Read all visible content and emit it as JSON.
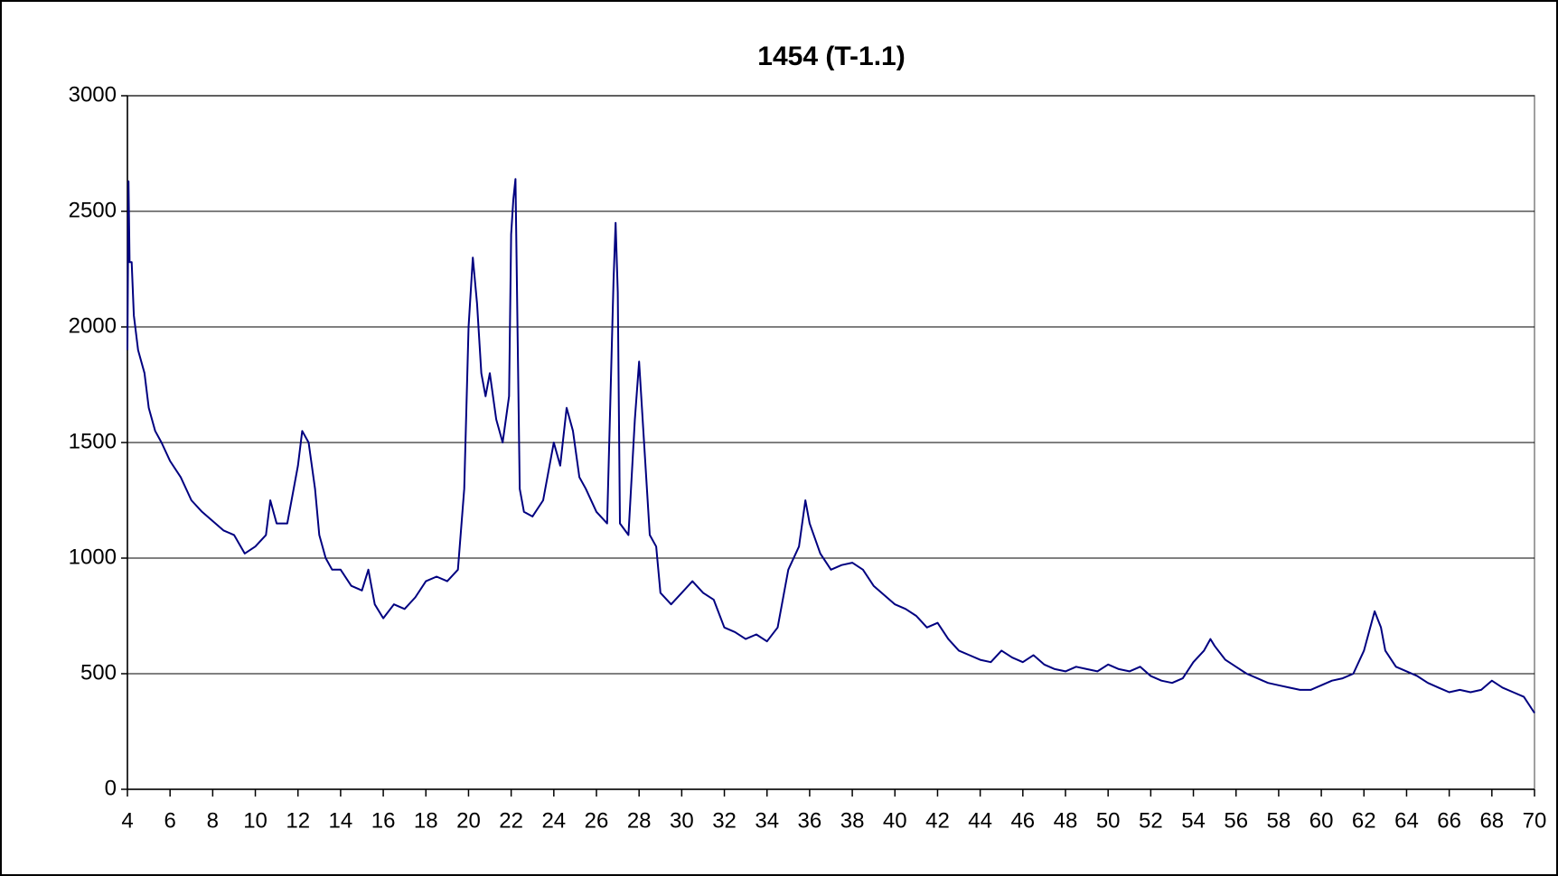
{
  "chart_data": {
    "type": "line",
    "title": "1454 (T-1.1)",
    "x": [
      4.0,
      4.05,
      4.1,
      4.2,
      4.3,
      4.5,
      4.8,
      5.0,
      5.3,
      5.6,
      6.0,
      6.5,
      7.0,
      7.5,
      8.0,
      8.5,
      9.0,
      9.5,
      10.0,
      10.5,
      10.7,
      11.0,
      11.5,
      12.0,
      12.2,
      12.5,
      12.8,
      13.0,
      13.3,
      13.6,
      14.0,
      14.5,
      15.0,
      15.3,
      15.6,
      16.0,
      16.5,
      17.0,
      17.5,
      18.0,
      18.5,
      19.0,
      19.5,
      19.8,
      20.0,
      20.2,
      20.4,
      20.6,
      20.8,
      21.0,
      21.3,
      21.6,
      21.9,
      22.0,
      22.1,
      22.2,
      22.4,
      22.6,
      23.0,
      23.5,
      24.0,
      24.3,
      24.6,
      24.9,
      25.2,
      25.5,
      26.0,
      26.5,
      26.8,
      26.9,
      27.0,
      27.1,
      27.5,
      27.8,
      28.0,
      28.2,
      28.5,
      28.8,
      29.0,
      29.5,
      30.0,
      30.5,
      31.0,
      31.5,
      32.0,
      32.5,
      33.0,
      33.5,
      34.0,
      34.5,
      35.0,
      35.5,
      35.8,
      36.0,
      36.5,
      37.0,
      37.5,
      38.0,
      38.5,
      39.0,
      39.5,
      40.0,
      40.5,
      41.0,
      41.5,
      42.0,
      42.5,
      43.0,
      43.5,
      44.0,
      44.5,
      45.0,
      45.5,
      46.0,
      46.5,
      47.0,
      47.5,
      48.0,
      48.5,
      49.0,
      49.5,
      50.0,
      50.5,
      51.0,
      51.5,
      52.0,
      52.5,
      53.0,
      53.5,
      54.0,
      54.5,
      54.8,
      55.0,
      55.5,
      56.0,
      56.5,
      57.0,
      57.5,
      58.0,
      58.5,
      59.0,
      59.5,
      60.0,
      60.5,
      61.0,
      61.5,
      62.0,
      62.5,
      62.8,
      63.0,
      63.5,
      64.0,
      64.5,
      65.0,
      65.5,
      66.0,
      66.5,
      67.0,
      67.5,
      68.0,
      68.5,
      69.0,
      69.5,
      70.0
    ],
    "series": [
      {
        "name": "1454 (T-1.1)",
        "color": "#000080",
        "values": [
          1900,
          2630,
          2280,
          2280,
          2050,
          1900,
          1800,
          1650,
          1550,
          1500,
          1420,
          1350,
          1250,
          1200,
          1160,
          1120,
          1100,
          1020,
          1050,
          1100,
          1250,
          1150,
          1150,
          1400,
          1550,
          1500,
          1300,
          1100,
          1000,
          950,
          950,
          880,
          860,
          950,
          800,
          740,
          800,
          780,
          830,
          900,
          920,
          900,
          950,
          1300,
          2000,
          2300,
          2100,
          1800,
          1700,
          1800,
          1600,
          1500,
          1700,
          2400,
          2550,
          2640,
          1300,
          1200,
          1180,
          1250,
          1500,
          1400,
          1650,
          1550,
          1350,
          1300,
          1200,
          1150,
          2200,
          2450,
          2150,
          1150,
          1100,
          1600,
          1850,
          1550,
          1100,
          1050,
          850,
          800,
          850,
          900,
          850,
          820,
          700,
          680,
          650,
          670,
          640,
          700,
          950,
          1050,
          1250,
          1150,
          1020,
          950,
          970,
          980,
          950,
          880,
          840,
          800,
          780,
          750,
          700,
          720,
          650,
          600,
          580,
          560,
          550,
          600,
          570,
          550,
          580,
          540,
          520,
          510,
          530,
          520,
          510,
          540,
          520,
          510,
          530,
          490,
          470,
          460,
          480,
          550,
          600,
          650,
          620,
          560,
          530,
          500,
          480,
          460,
          450,
          440,
          430,
          430,
          450,
          470,
          480,
          500,
          600,
          770,
          700,
          600,
          530,
          510,
          490,
          460,
          440,
          420,
          430,
          420,
          430,
          470,
          440,
          420,
          400,
          330
        ]
      }
    ],
    "xlim": [
      4,
      70
    ],
    "xticks": [
      4,
      6,
      8,
      10,
      12,
      14,
      16,
      18,
      20,
      22,
      24,
      26,
      28,
      30,
      32,
      34,
      36,
      38,
      40,
      42,
      44,
      46,
      48,
      50,
      52,
      54,
      56,
      58,
      60,
      62,
      64,
      66,
      68,
      70
    ],
    "ylim": [
      0,
      3000
    ],
    "yticks": [
      0,
      500,
      1000,
      1500,
      2000,
      2500,
      3000
    ],
    "grid": true
  }
}
